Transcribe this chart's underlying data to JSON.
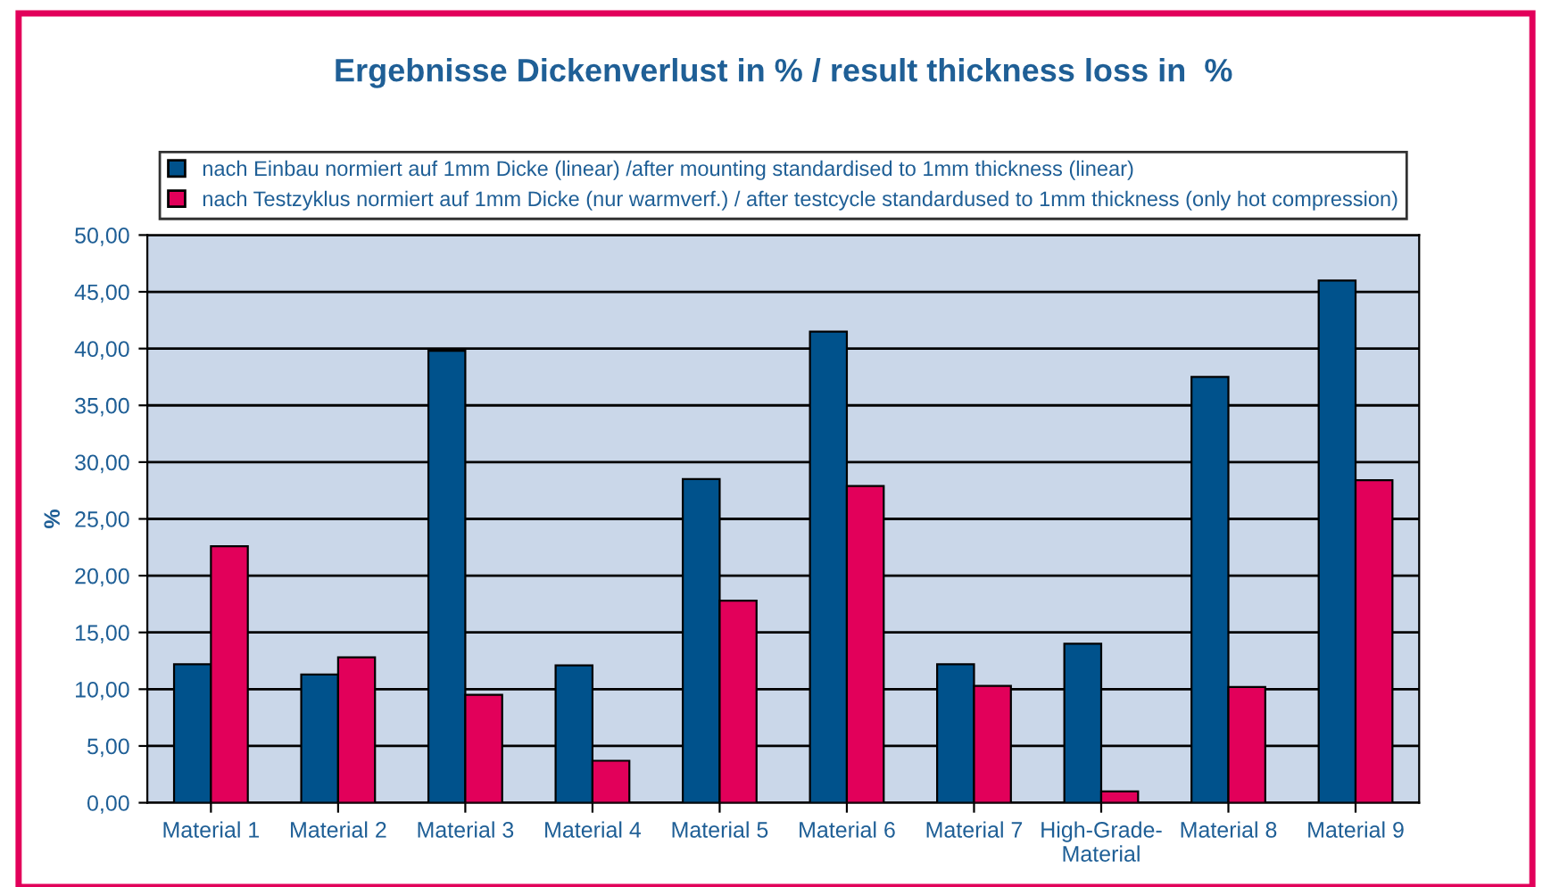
{
  "chart_data": {
    "type": "bar",
    "title": "Ergebnisse Dickenverlust in % / result thickness loss in  %",
    "ylabel": "%",
    "categories": [
      "Material 1",
      "Material 2",
      "Material 3",
      "Material 4",
      "Material 5",
      "Material 6",
      "Material 7",
      "High-Grade-\nMaterial",
      "Material 8",
      "Material 9"
    ],
    "series": [
      {
        "name": "nach Einbau normiert auf 1mm Dicke (linear) /after mounting standardised to 1mm thickness (linear)",
        "color": "#00528c",
        "values": [
          12.2,
          11.3,
          39.8,
          12.1,
          28.5,
          41.5,
          12.2,
          14.0,
          37.5,
          46.0
        ]
      },
      {
        "name": "nach Testzyklus normiert auf 1mm Dicke (nur warmverf.) / after testcycle standardused to 1mm thickness (only hot compression)",
        "color": "#e2005a",
        "values": [
          22.6,
          12.8,
          9.5,
          3.7,
          17.8,
          27.9,
          10.3,
          1.0,
          10.2,
          28.4
        ]
      }
    ],
    "ylim": [
      0,
      50
    ],
    "yticks": [
      {
        "value": 0,
        "label": "0,00"
      },
      {
        "value": 5,
        "label": "5,00"
      },
      {
        "value": 10,
        "label": "10,00"
      },
      {
        "value": 15,
        "label": "15,00"
      },
      {
        "value": 20,
        "label": "20,00"
      },
      {
        "value": 25,
        "label": "25,00"
      },
      {
        "value": 30,
        "label": "30,00"
      },
      {
        "value": 35,
        "label": "35,00"
      },
      {
        "value": 40,
        "label": "40,00"
      },
      {
        "value": 45,
        "label": "45,00"
      },
      {
        "value": 50,
        "label": "50,00"
      }
    ],
    "grid": "y",
    "legend": "top"
  }
}
